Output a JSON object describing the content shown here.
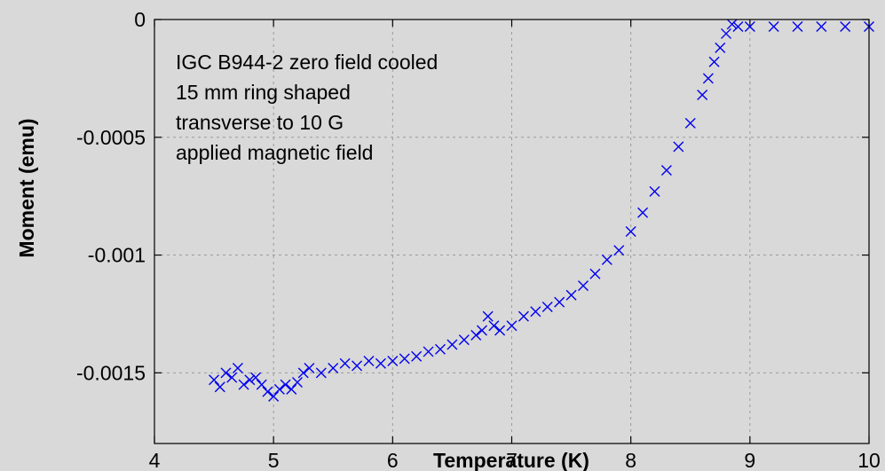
{
  "chart_data": {
    "type": "scatter",
    "title": "",
    "xlabel": "Temperature (K)",
    "ylabel": "Moment (emu)",
    "xlim": [
      4,
      10
    ],
    "ylim": [
      -0.0018,
      0
    ],
    "x_ticks": [
      4,
      5,
      6,
      7,
      8,
      9,
      10
    ],
    "x_tick_labels": [
      "4",
      "5",
      "6",
      "7",
      "8",
      "9",
      "10"
    ],
    "y_ticks": [
      0,
      -0.0005,
      -0.001,
      -0.0015
    ],
    "y_tick_labels": [
      "0",
      "-0.0005",
      "-0.001",
      "-0.0015"
    ],
    "grid": true,
    "marker": "x",
    "marker_color": "#0000ee",
    "annotation_lines": [
      "IGC B944-2 zero field cooled",
      "15 mm ring shaped",
      "transverse to 10 G",
      "applied magnetic field"
    ],
    "series": [
      {
        "points": [
          [
            4.5,
            -0.00153
          ],
          [
            4.55,
            -0.00156
          ],
          [
            4.6,
            -0.0015
          ],
          [
            4.65,
            -0.00152
          ],
          [
            4.7,
            -0.00148
          ],
          [
            4.75,
            -0.00155
          ],
          [
            4.8,
            -0.00153
          ],
          [
            4.85,
            -0.00152
          ],
          [
            4.9,
            -0.00155
          ],
          [
            4.95,
            -0.00158
          ],
          [
            5.0,
            -0.0016
          ],
          [
            5.05,
            -0.00157
          ],
          [
            5.1,
            -0.00155
          ],
          [
            5.15,
            -0.00157
          ],
          [
            5.2,
            -0.00154
          ],
          [
            5.25,
            -0.0015
          ],
          [
            5.3,
            -0.00148
          ],
          [
            5.4,
            -0.0015
          ],
          [
            5.5,
            -0.00148
          ],
          [
            5.6,
            -0.00146
          ],
          [
            5.7,
            -0.00147
          ],
          [
            5.8,
            -0.00145
          ],
          [
            5.9,
            -0.00146
          ],
          [
            6.0,
            -0.00145
          ],
          [
            6.1,
            -0.00144
          ],
          [
            6.2,
            -0.00143
          ],
          [
            6.3,
            -0.00141
          ],
          [
            6.4,
            -0.0014
          ],
          [
            6.5,
            -0.00138
          ],
          [
            6.6,
            -0.00136
          ],
          [
            6.7,
            -0.00134
          ],
          [
            6.75,
            -0.00132
          ],
          [
            6.8,
            -0.00126
          ],
          [
            6.85,
            -0.0013
          ],
          [
            6.9,
            -0.00132
          ],
          [
            7.0,
            -0.0013
          ],
          [
            7.1,
            -0.00126
          ],
          [
            7.2,
            -0.00124
          ],
          [
            7.3,
            -0.00122
          ],
          [
            7.4,
            -0.0012
          ],
          [
            7.5,
            -0.00117
          ],
          [
            7.6,
            -0.00113
          ],
          [
            7.7,
            -0.00108
          ],
          [
            7.8,
            -0.00102
          ],
          [
            7.9,
            -0.00098
          ],
          [
            8.0,
            -0.0009
          ],
          [
            8.1,
            -0.00082
          ],
          [
            8.2,
            -0.00073
          ],
          [
            8.3,
            -0.00064
          ],
          [
            8.4,
            -0.00054
          ],
          [
            8.5,
            -0.00044
          ],
          [
            8.6,
            -0.00032
          ],
          [
            8.65,
            -0.00025
          ],
          [
            8.7,
            -0.00018
          ],
          [
            8.75,
            -0.00012
          ],
          [
            8.8,
            -6e-05
          ],
          [
            8.85,
            -2e-05
          ],
          [
            8.9,
            -3e-05
          ],
          [
            9.0,
            -3e-05
          ],
          [
            9.2,
            -3e-05
          ],
          [
            9.4,
            -3e-05
          ],
          [
            9.6,
            -3e-05
          ],
          [
            9.8,
            -3e-05
          ],
          [
            10.0,
            -3e-05
          ]
        ]
      }
    ]
  }
}
